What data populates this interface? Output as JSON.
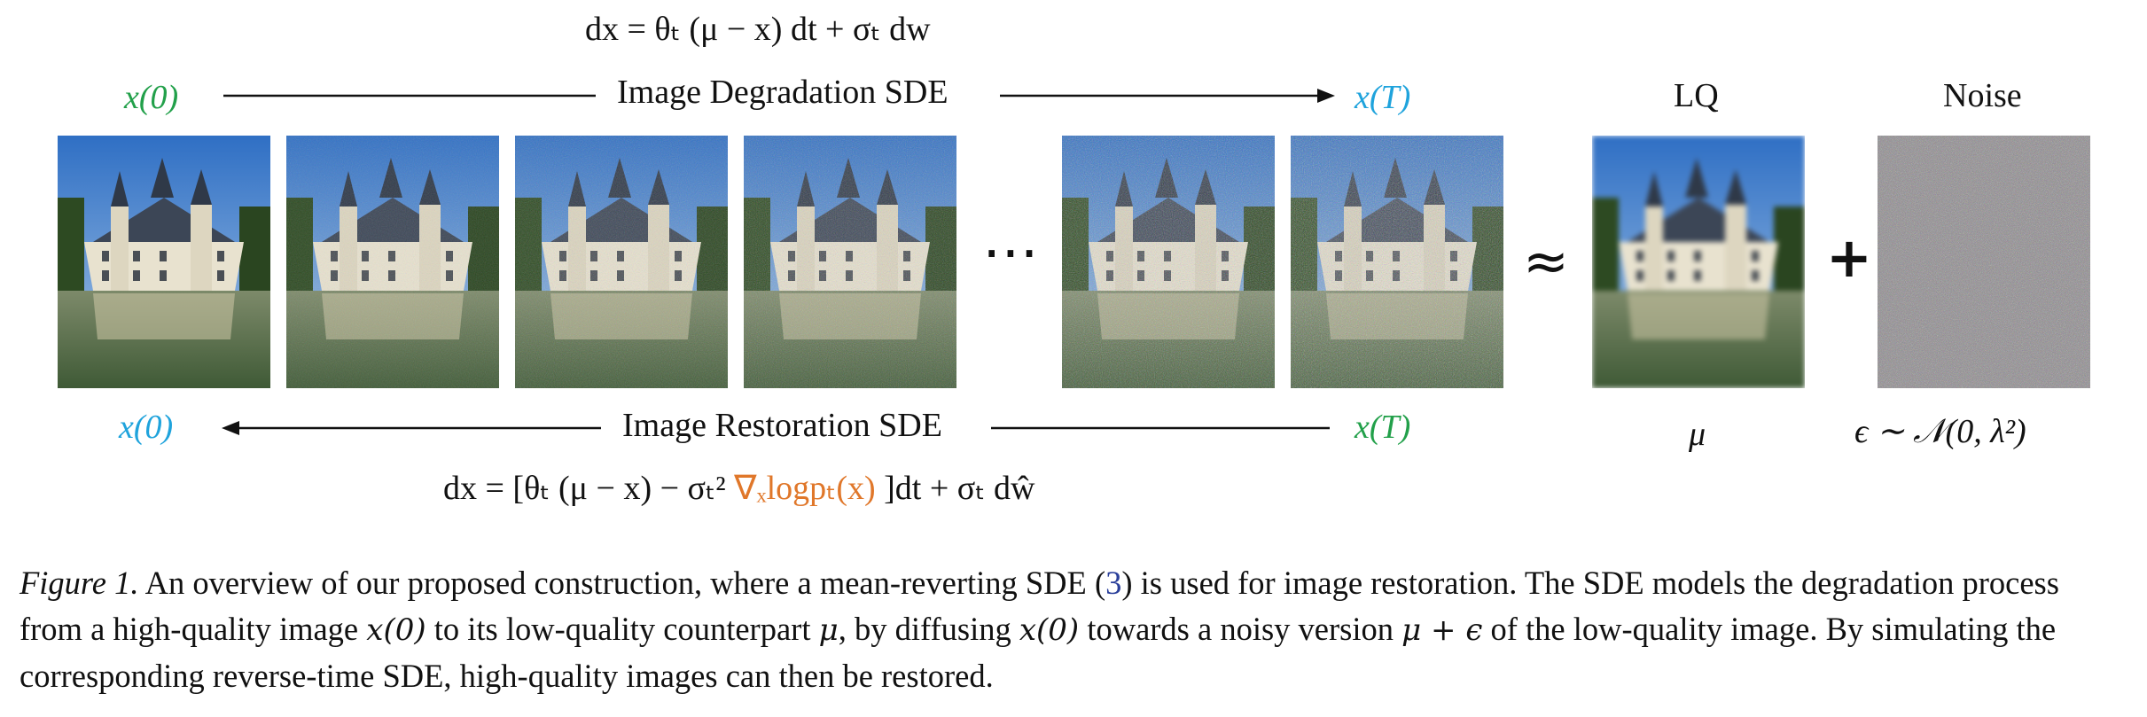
{
  "top_equation": "dx = θₜ (μ − x) dt + σₜ dw",
  "bottom_equation": {
    "prefix": "dx = [θₜ (μ − x)  − σₜ²",
    "score": "∇ₓlogpₜ(x)",
    "suffix": "]dt + σₜ dŵ"
  },
  "forward": {
    "start": "x(0)",
    "label": "Image Degradation SDE",
    "end": "x(T)"
  },
  "reverse": {
    "start": "x(T)",
    "label": "Image Restoration SDE",
    "end": "x(0)"
  },
  "ellipsis": "⋯",
  "approx_symbol": "≈",
  "plus_symbol": "+",
  "lq": {
    "title": "LQ",
    "symbol": "μ"
  },
  "noise": {
    "title": "Noise",
    "symbol": "ϵ ∼ 𝒩(0, λ²)"
  },
  "images": [
    {
      "name": "clean",
      "noise": 0
    },
    {
      "name": "step-1",
      "noise": 0.15
    },
    {
      "name": "step-2",
      "noise": 0.35
    },
    {
      "name": "step-3",
      "noise": 0.55
    },
    {
      "name": "step-4",
      "noise": 0.8
    },
    {
      "name": "step-T",
      "noise": 1.0
    }
  ],
  "caption": {
    "figure": "Figure 1.",
    "part1": " An overview of our proposed construction, where a mean-reverting SDE (",
    "ref": "3",
    "part2": ") is used for image restoration. The SDE models the degradation process from a high-quality image ",
    "x0a": "x(0)",
    "part3": " to its low-quality counterpart ",
    "mu": "μ",
    "part4": ", by diffusing ",
    "x0b": "x(0)",
    "part5": " towards a noisy version ",
    "mueps": "μ + ϵ",
    "part6": " of the low-quality image. By simulating the corresponding reverse-time SDE, high-quality images can then be restored."
  },
  "colors": {
    "green": "#22a04a",
    "cyan": "#1fa3dc",
    "orange": "#e0772a",
    "ref": "#2a3f9a"
  }
}
